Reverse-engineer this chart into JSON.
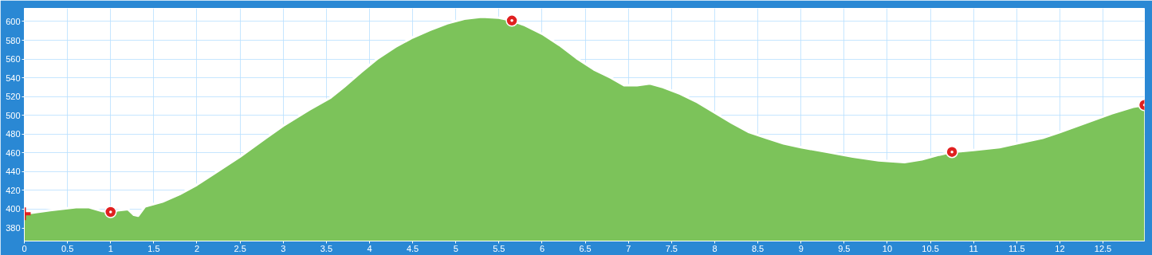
{
  "chart_data": {
    "type": "area",
    "x": [
      0,
      0.3,
      0.6,
      0.75,
      0.9,
      1.0,
      1.1,
      1.2,
      1.27,
      1.32,
      1.4,
      1.6,
      1.8,
      2.0,
      2.2,
      2.5,
      2.8,
      3.0,
      3.3,
      3.55,
      3.7,
      3.9,
      4.1,
      4.3,
      4.5,
      4.7,
      4.9,
      5.1,
      5.3,
      5.5,
      5.65,
      5.8,
      6.0,
      6.2,
      6.4,
      6.6,
      6.8,
      6.95,
      7.1,
      7.25,
      7.4,
      7.6,
      7.8,
      8.0,
      8.2,
      8.4,
      8.6,
      8.8,
      9.0,
      9.3,
      9.6,
      9.9,
      10.2,
      10.4,
      10.6,
      10.75,
      11.0,
      11.3,
      11.5,
      11.8,
      12.0,
      12.3,
      12.6,
      12.85,
      12.98
    ],
    "series": [
      {
        "color": "#7cc35a",
        "values": [
          395,
          399,
          402,
          402,
          398,
          397,
          399,
          400,
          394,
          393,
          403,
          408,
          416,
          426,
          438,
          456,
          476,
          489,
          506,
          519,
          530,
          546,
          561,
          573,
          583,
          591,
          598,
          603,
          605,
          604,
          601,
          596,
          587,
          575,
          561,
          549,
          540,
          532,
          532,
          534,
          530,
          523,
          514,
          503,
          492,
          482,
          476,
          470,
          466,
          461,
          456,
          452,
          450,
          453,
          458,
          461,
          463,
          466,
          470,
          476,
          482,
          492,
          502,
          509,
          511
        ]
      },
      {
        "type": "scatter",
        "marker": "cross",
        "color": "#e02020",
        "x": [
          0
        ],
        "values": [
          395
        ]
      },
      {
        "type": "scatter",
        "marker": "circle",
        "color": "#e02020",
        "x": [
          1.0,
          5.65,
          10.75,
          12.98
        ],
        "values": [
          397,
          601,
          461,
          511
        ]
      }
    ],
    "xlim": [
      0,
      12.98
    ],
    "ylim": [
      366,
      614
    ],
    "xticks": [
      0,
      0.5,
      1,
      1.5,
      2,
      2.5,
      3,
      3.5,
      4,
      4.5,
      5,
      5.5,
      6,
      6.5,
      7,
      7.5,
      8,
      8.5,
      9,
      9.5,
      10,
      10.5,
      11,
      11.5,
      12,
      12.5
    ],
    "yticks": [
      380,
      400,
      420,
      440,
      460,
      480,
      500,
      520,
      540,
      560,
      580,
      600
    ],
    "grid": true
  }
}
